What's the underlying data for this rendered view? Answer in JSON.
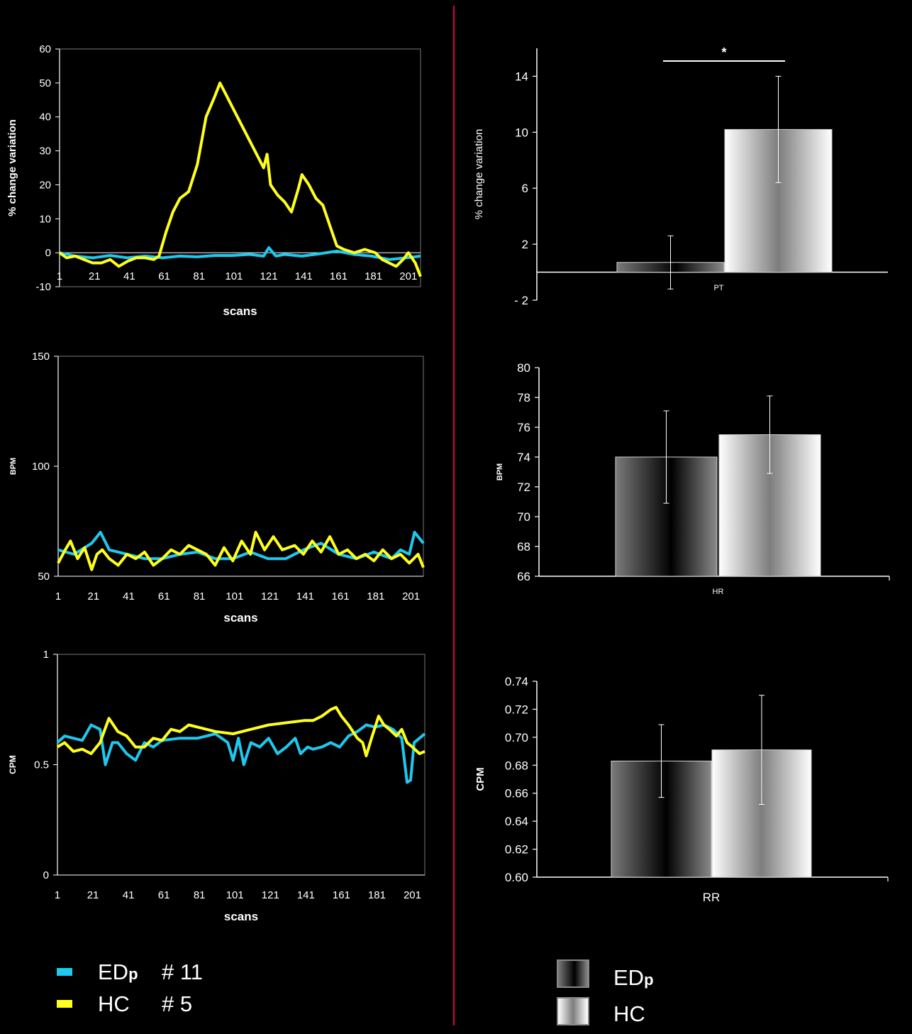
{
  "colors": {
    "edp": "#1ec8ee",
    "hc": "#ffff1e",
    "divider": "#e0004e"
  },
  "legend_left": {
    "items": [
      {
        "group": "ED",
        "sub": "p",
        "id": "# 11",
        "color": "#1ec8ee"
      },
      {
        "group": "HC",
        "sub": "",
        "id": "# 5",
        "color": "#ffff1e"
      }
    ]
  },
  "legend_right": {
    "items": [
      {
        "group": "ED",
        "sub": "p",
        "fill": "dark-gradient"
      },
      {
        "group": "HC",
        "sub": "",
        "fill": "light-gradient"
      }
    ]
  },
  "chart_data": [
    {
      "type": "line",
      "xlabel": "scans",
      "ylabel": "% change variation",
      "ylim": [
        -10,
        60
      ],
      "yticks": [
        -10,
        0,
        10,
        20,
        30,
        40,
        50,
        60
      ],
      "xlim": [
        1,
        208
      ],
      "xticks": [
        1,
        21,
        41,
        61,
        81,
        101,
        121,
        141,
        161,
        181,
        201
      ],
      "grid": false,
      "series": [
        {
          "name": "EDp # 11",
          "color": "#1ec8ee",
          "x": [
            1,
            10,
            20,
            30,
            40,
            50,
            60,
            70,
            80,
            90,
            100,
            110,
            118,
            121,
            125,
            130,
            140,
            150,
            160,
            170,
            180,
            190,
            200,
            208
          ],
          "y": [
            0,
            -1,
            -1.5,
            -0.8,
            -1.5,
            -1,
            -1.5,
            -1,
            -1.2,
            -0.8,
            -0.8,
            -0.5,
            -1,
            1.5,
            -1,
            -0.5,
            -1,
            -0.3,
            0.5,
            -0.5,
            -1,
            -2,
            -1.5,
            -1
          ]
        },
        {
          "name": "HC # 5",
          "color": "#ffff1e",
          "x": [
            1,
            5,
            10,
            15,
            20,
            25,
            30,
            35,
            40,
            45,
            50,
            55,
            58,
            62,
            66,
            70,
            75,
            80,
            85,
            90,
            93,
            96,
            100,
            105,
            110,
            115,
            118,
            120,
            122,
            126,
            130,
            134,
            138,
            140,
            144,
            148,
            152,
            156,
            160,
            164,
            170,
            176,
            182,
            186,
            190,
            194,
            198,
            201,
            205,
            208
          ],
          "y": [
            0,
            -1.5,
            -1,
            -2,
            -3,
            -3,
            -2,
            -4,
            -2.5,
            -1.5,
            -1.5,
            -2,
            -1,
            6,
            12,
            16,
            18,
            26,
            40,
            46,
            50,
            47,
            43,
            38,
            33,
            28,
            25,
            29,
            20,
            17,
            15,
            12,
            19,
            23,
            20,
            16,
            14,
            8,
            2,
            1,
            0,
            1,
            0,
            -2,
            -3,
            -4,
            -2,
            0,
            -3,
            -7
          ]
        }
      ]
    },
    {
      "type": "line",
      "xlabel": "scans",
      "ylabel": "BPM",
      "ylim": [
        50,
        150
      ],
      "yticks": [
        50,
        100,
        150
      ],
      "xlim": [
        1,
        208
      ],
      "xticks": [
        1,
        21,
        41,
        61,
        81,
        101,
        121,
        141,
        161,
        181,
        201
      ],
      "grid": false,
      "series": [
        {
          "name": "EDp # 11",
          "color": "#1ec8ee",
          "x": [
            1,
            10,
            20,
            25,
            30,
            40,
            50,
            60,
            70,
            80,
            90,
            100,
            110,
            120,
            130,
            140,
            150,
            160,
            170,
            180,
            190,
            195,
            200,
            203,
            208
          ],
          "y": [
            62,
            60,
            65,
            70,
            62,
            60,
            58,
            58,
            60,
            61,
            58,
            58,
            61,
            58,
            58,
            62,
            65,
            60,
            58,
            61,
            58,
            62,
            60,
            70,
            65
          ]
        },
        {
          "name": "HC # 5",
          "color": "#ffff1e",
          "x": [
            1,
            5,
            8,
            12,
            16,
            20,
            23,
            26,
            30,
            35,
            40,
            45,
            50,
            55,
            60,
            65,
            70,
            75,
            80,
            85,
            90,
            95,
            100,
            105,
            110,
            113,
            118,
            123,
            128,
            135,
            140,
            145,
            150,
            155,
            160,
            165,
            170,
            175,
            180,
            185,
            190,
            195,
            200,
            205,
            208
          ],
          "y": [
            56,
            62,
            66,
            58,
            63,
            53,
            60,
            62,
            58,
            55,
            60,
            58,
            61,
            55,
            58,
            62,
            60,
            64,
            62,
            60,
            55,
            63,
            57,
            66,
            60,
            70,
            62,
            68,
            62,
            64,
            60,
            66,
            61,
            68,
            60,
            62,
            58,
            60,
            57,
            62,
            58,
            60,
            56,
            60,
            54
          ]
        }
      ]
    },
    {
      "type": "line",
      "xlabel": "scans",
      "ylabel": "CPM",
      "ylim": [
        0,
        1
      ],
      "yticks": [
        0,
        0.5,
        1
      ],
      "xlim": [
        1,
        208
      ],
      "xticks": [
        1,
        21,
        41,
        61,
        81,
        101,
        121,
        141,
        161,
        181,
        201
      ],
      "grid": false,
      "series": [
        {
          "name": "EDp # 11",
          "color": "#1ec8ee",
          "x": [
            1,
            5,
            10,
            15,
            20,
            25,
            28,
            32,
            35,
            40,
            45,
            50,
            55,
            60,
            70,
            80,
            90,
            97,
            100,
            103,
            106,
            110,
            115,
            120,
            125,
            130,
            135,
            138,
            142,
            145,
            150,
            155,
            160,
            165,
            170,
            175,
            180,
            185,
            190,
            195,
            198,
            200,
            202,
            205,
            208
          ],
          "y": [
            0.6,
            0.63,
            0.62,
            0.61,
            0.68,
            0.66,
            0.5,
            0.6,
            0.6,
            0.55,
            0.52,
            0.6,
            0.58,
            0.61,
            0.62,
            0.62,
            0.64,
            0.6,
            0.52,
            0.62,
            0.5,
            0.6,
            0.58,
            0.62,
            0.55,
            0.58,
            0.62,
            0.55,
            0.58,
            0.57,
            0.58,
            0.6,
            0.58,
            0.63,
            0.65,
            0.68,
            0.67,
            0.68,
            0.66,
            0.62,
            0.42,
            0.43,
            0.6,
            0.62,
            0.64
          ]
        },
        {
          "name": "HC # 5",
          "color": "#ffff1e",
          "x": [
            1,
            5,
            10,
            15,
            20,
            25,
            30,
            35,
            40,
            45,
            50,
            55,
            60,
            65,
            70,
            75,
            80,
            90,
            100,
            110,
            120,
            130,
            140,
            145,
            150,
            155,
            158,
            161,
            165,
            170,
            173,
            175,
            178,
            182,
            185,
            188,
            192,
            195,
            198,
            201,
            205,
            208
          ],
          "y": [
            0.58,
            0.6,
            0.56,
            0.57,
            0.55,
            0.6,
            0.71,
            0.65,
            0.63,
            0.58,
            0.58,
            0.62,
            0.61,
            0.66,
            0.65,
            0.68,
            0.67,
            0.65,
            0.64,
            0.66,
            0.68,
            0.69,
            0.7,
            0.7,
            0.72,
            0.75,
            0.76,
            0.72,
            0.68,
            0.62,
            0.6,
            0.54,
            0.62,
            0.72,
            0.68,
            0.66,
            0.63,
            0.66,
            0.6,
            0.58,
            0.55,
            0.56
          ]
        }
      ]
    },
    {
      "type": "bar",
      "categories": [
        "PT"
      ],
      "ylabel": "% change variation",
      "ylim": [
        -2,
        16
      ],
      "yticks": [
        -2,
        2,
        6,
        10,
        14
      ],
      "ytick_labels": [
        "- 2",
        "2",
        "6",
        "10",
        "14"
      ],
      "grid": false,
      "significance": "*",
      "series": [
        {
          "name": "EDp",
          "values": [
            0.7
          ],
          "error": [
            1.9
          ]
        },
        {
          "name": "HC",
          "values": [
            10.2
          ],
          "error": [
            3.8
          ]
        }
      ]
    },
    {
      "type": "bar",
      "categories": [
        "HR"
      ],
      "ylabel": "BPM",
      "ylim": [
        66,
        80
      ],
      "yticks": [
        66,
        68,
        70,
        72,
        74,
        76,
        78,
        80
      ],
      "grid": false,
      "series": [
        {
          "name": "EDp",
          "values": [
            74.0
          ],
          "error": [
            3.1
          ]
        },
        {
          "name": "HC",
          "values": [
            75.5
          ],
          "error": [
            2.6
          ]
        }
      ]
    },
    {
      "type": "bar",
      "categories": [
        "RR"
      ],
      "ylabel": "CPM",
      "ylim": [
        0.6,
        0.74
      ],
      "yticks": [
        0.6,
        0.62,
        0.64,
        0.66,
        0.68,
        0.7,
        0.72,
        0.74
      ],
      "ytick_labels": [
        "0.60",
        "0.62",
        "0.64",
        "0.66",
        "0.68",
        "0.70",
        "0.72",
        "0.74"
      ],
      "grid": false,
      "series": [
        {
          "name": "EDp",
          "values": [
            0.683
          ],
          "error": [
            0.026
          ]
        },
        {
          "name": "HC",
          "values": [
            0.691
          ],
          "error": [
            0.039
          ]
        }
      ]
    }
  ]
}
